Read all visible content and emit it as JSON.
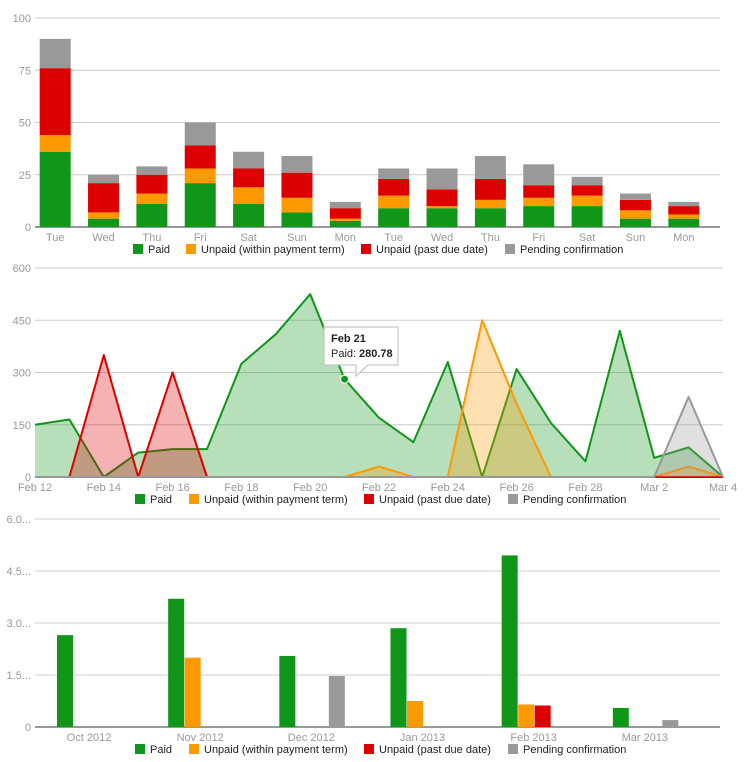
{
  "legend": [
    {
      "label": "Paid",
      "color": "#109618"
    },
    {
      "label": "Unpaid (within payment term)",
      "color": "#ff9900"
    },
    {
      "label": "Unpaid (past due date)",
      "color": "#dc0000"
    },
    {
      "label": "Pending confirmation",
      "color": "#999999"
    }
  ],
  "tooltip": {
    "title": "Feb 21",
    "label": "Paid:",
    "value": "280.78"
  },
  "chart_data": [
    {
      "type": "bar",
      "stacked": true,
      "categories": [
        "Tue",
        "Wed",
        "Thu",
        "Fri",
        "Sat",
        "Sun",
        "Mon",
        "Tue",
        "Wed",
        "Thu",
        "Fri",
        "Sat",
        "Sun",
        "Mon"
      ],
      "series": [
        {
          "name": "Paid",
          "values": [
            36,
            4,
            11,
            21,
            11,
            7,
            3,
            9,
            9,
            9,
            10,
            10,
            4,
            4
          ]
        },
        {
          "name": "Unpaid (within payment term)",
          "values": [
            8,
            3,
            5,
            7,
            8,
            7,
            1,
            6,
            1,
            4,
            4,
            5,
            4,
            2
          ]
        },
        {
          "name": "Unpaid (past due date)",
          "values": [
            32,
            14,
            9,
            11,
            9,
            12,
            5,
            8,
            8,
            10,
            6,
            5,
            5,
            4
          ]
        },
        {
          "name": "Pending confirmation",
          "values": [
            14,
            4,
            4,
            11,
            8,
            8,
            3,
            5,
            10,
            11,
            10,
            4,
            3,
            2
          ]
        }
      ],
      "y_ticks": [
        "0",
        "25",
        "50",
        "75",
        "100"
      ],
      "ylim": [
        0,
        100
      ],
      "grid": true,
      "legend_position": "bottom"
    },
    {
      "type": "area",
      "x": [
        "Feb 12",
        "Feb 13",
        "Feb 14",
        "Feb 15",
        "Feb 16",
        "Feb 17",
        "Feb 18",
        "Feb 19",
        "Feb 20",
        "Feb 21",
        "Feb 22",
        "Feb 23",
        "Feb 24",
        "Feb 25",
        "Feb 26",
        "Feb 27",
        "Feb 28",
        "Mar 1",
        "Mar 2",
        "Mar 3",
        "Mar 4"
      ],
      "x_ticks": [
        "Feb 12",
        "Feb 14",
        "Feb 16",
        "Feb 18",
        "Feb 20",
        "Feb 22",
        "Feb 24",
        "Feb 26",
        "Feb 28",
        "Mar 2",
        "Mar 4"
      ],
      "series": [
        {
          "name": "Paid",
          "values": [
            150,
            165,
            0,
            70,
            80,
            80,
            325,
            410,
            525,
            280.78,
            170,
            100,
            330,
            0,
            310,
            155,
            45,
            420,
            55,
            85,
            0
          ]
        },
        {
          "name": "Unpaid (within payment term)",
          "values": [
            0,
            0,
            0,
            0,
            0,
            0,
            0,
            0,
            0,
            0,
            30,
            0,
            0,
            450,
            210,
            0,
            0,
            0,
            0,
            30,
            0
          ]
        },
        {
          "name": "Unpaid (past due date)",
          "values": [
            0,
            0,
            350,
            0,
            300,
            0,
            0,
            0,
            0,
            0,
            0,
            0,
            0,
            0,
            0,
            0,
            0,
            0,
            0,
            0,
            0
          ]
        },
        {
          "name": "Pending confirmation",
          "values": [
            0,
            0,
            0,
            0,
            0,
            0,
            0,
            0,
            0,
            0,
            0,
            0,
            0,
            0,
            0,
            0,
            0,
            0,
            0,
            230,
            0
          ]
        }
      ],
      "y_ticks": [
        "0",
        "150",
        "300",
        "450",
        "600"
      ],
      "ylim": [
        0,
        600
      ],
      "grid": true,
      "legend_position": "bottom"
    },
    {
      "type": "bar",
      "categories": [
        "Oct 2012",
        "Nov 2012",
        "Dec 2012",
        "Jan 2013",
        "Feb 2013",
        "Mar 2013"
      ],
      "series": [
        {
          "name": "Paid",
          "values": [
            2.65,
            3.7,
            2.05,
            2.85,
            4.95,
            0.55
          ]
        },
        {
          "name": "Unpaid (within payment term)",
          "values": [
            0,
            2.0,
            0,
            0.75,
            0.65,
            0
          ]
        },
        {
          "name": "Unpaid (past due date)",
          "values": [
            0,
            0,
            0,
            0,
            0.62,
            0
          ]
        },
        {
          "name": "Pending confirmation",
          "values": [
            0,
            0,
            1.47,
            0,
            0,
            0.2
          ]
        }
      ],
      "y_ticks": [
        "0",
        "1.5...",
        "3.0...",
        "4.5...",
        "6.0..."
      ],
      "ylim": [
        0,
        6
      ],
      "grid": true,
      "legend_position": "bottom"
    }
  ]
}
